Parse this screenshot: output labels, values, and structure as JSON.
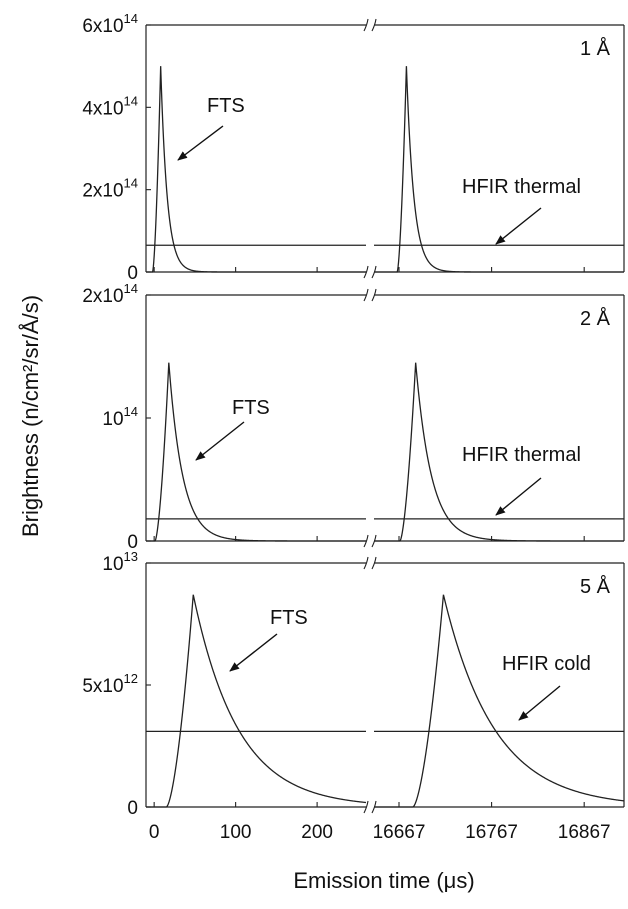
{
  "chart_data": {
    "type": "line",
    "xlabel": "Emission time (μs)",
    "ylabel": "Brightness (n/cm²/sr/Å/s)",
    "x_ticks": [
      {
        "value": 0,
        "label": "0"
      },
      {
        "value": 100,
        "label": "100"
      },
      {
        "value": 200,
        "label": "200"
      },
      {
        "value": 16667,
        "label": "16667"
      },
      {
        "value": 16767,
        "label": "16767"
      },
      {
        "value": 16867,
        "label": "16867"
      }
    ],
    "x_segments": [
      [
        -10,
        260
      ],
      [
        16640,
        16910
      ]
    ],
    "panels": [
      {
        "label": "1 Å",
        "ylim": [
          0,
          600000000000000.0
        ],
        "y_ticks": [
          {
            "value": 0,
            "label": "0"
          },
          {
            "value": 200000000000000.0,
            "base": "2x10",
            "exp": "14"
          },
          {
            "value": 400000000000000.0,
            "base": "4x10",
            "exp": "14"
          },
          {
            "value": 600000000000000.0,
            "base": "6x10",
            "exp": "14"
          }
        ],
        "pulse": {
          "t0": -2,
          "peak_t": 8,
          "peak_value": 500000000000000.0,
          "decay": 8
        },
        "hfir": {
          "label": "HFIR thermal",
          "value": 65000000000000.0
        },
        "annotations": [
          {
            "text": "FTS"
          },
          {
            "text": "HFIR thermal"
          }
        ]
      },
      {
        "label": "2 Å",
        "ylim": [
          0,
          200000000000000.0
        ],
        "y_ticks": [
          {
            "value": 0,
            "label": "0"
          },
          {
            "value": 100000000000000.0,
            "base": "10",
            "exp": "14"
          },
          {
            "value": 200000000000000.0,
            "base": "2x10",
            "exp": "14"
          }
        ],
        "pulse": {
          "t0": 1,
          "peak_t": 18,
          "peak_value": 145000000000000.0,
          "decay": 17
        },
        "hfir": {
          "label": "HFIR thermal",
          "value": 18000000000000.0
        },
        "annotations": [
          {
            "text": "FTS"
          },
          {
            "text": "HFIR thermal"
          }
        ]
      },
      {
        "label": "5 Å",
        "ylim": [
          0,
          10000000000000.0
        ],
        "y_ticks": [
          {
            "value": 0,
            "label": "0"
          },
          {
            "value": 5000000000000.0,
            "base": "5x10",
            "exp": "12"
          },
          {
            "value": 10000000000000.0,
            "base": "10",
            "exp": "13"
          }
        ],
        "pulse": {
          "t0": 15,
          "peak_t": 48,
          "peak_value": 8700000000000.0,
          "decay": 55
        },
        "hfir": {
          "label": "HFIR cold",
          "value": 3100000000000.0
        },
        "annotations": [
          {
            "text": "FTS"
          },
          {
            "text": "HFIR cold"
          }
        ]
      }
    ]
  }
}
